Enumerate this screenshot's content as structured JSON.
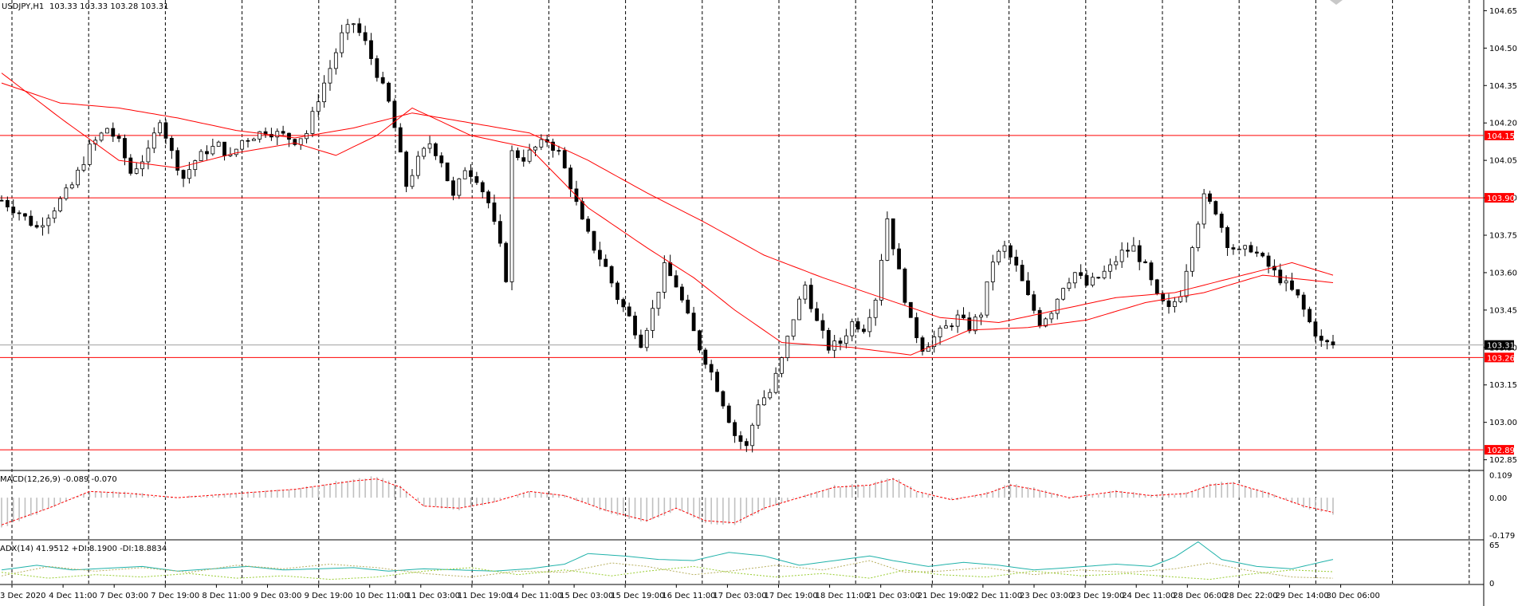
{
  "chart_data": {
    "type": "candlestick",
    "symbol_label": "USDJPY,H1",
    "ohlc_label": "103.33 103.33 103.28 103.31",
    "price_axis": {
      "ylim": [
        102.82,
        104.68
      ],
      "ticks": [
        "104.65",
        "104.50",
        "104.35",
        "104.20",
        "104.05",
        "103.90",
        "103.75",
        "103.60",
        "103.45",
        "103.30",
        "103.15",
        "103.00",
        "102.85"
      ]
    },
    "x_ticks": [
      "3 Dec 2020",
      "4 Dec 11:00",
      "7 Dec 03:00",
      "7 Dec 19:00",
      "8 Dec 11:00",
      "9 Dec 03:00",
      "9 Dec 19:00",
      "10 Dec 11:00",
      "11 Dec 03:00",
      "11 Dec 19:00",
      "14 Dec 11:00",
      "15 Dec 03:00",
      "15 Dec 19:00",
      "16 Dec 11:00",
      "17 Dec 03:00",
      "17 Dec 19:00",
      "18 Dec 11:00",
      "21 Dec 03:00",
      "21 Dec 19:00",
      "22 Dec 11:00",
      "23 Dec 03:00",
      "23 Dec 19:00",
      "24 Dec 11:00",
      "28 Dec 06:00",
      "28 Dec 22:00",
      "29 Dec 14:00",
      "30 Dec 06:00"
    ],
    "horizontal_levels": [
      {
        "value": 104.15,
        "label": "104.15"
      },
      {
        "value": 103.9,
        "label": "103.90"
      },
      {
        "value": 103.26,
        "label": "103.26"
      },
      {
        "value": 102.89,
        "label": "102.89"
      }
    ],
    "bid_level": {
      "value": 103.31,
      "label": "103.31"
    },
    "close_path": [
      [
        0,
        103.89
      ],
      [
        3,
        103.84
      ],
      [
        6,
        103.78
      ],
      [
        9,
        103.86
      ],
      [
        12,
        103.95
      ],
      [
        15,
        104.1
      ],
      [
        18,
        104.18
      ],
      [
        20,
        104.12
      ],
      [
        22,
        104.0
      ],
      [
        25,
        104.08
      ],
      [
        27,
        104.22
      ],
      [
        29,
        104.08
      ],
      [
        31,
        103.98
      ],
      [
        33,
        104.05
      ],
      [
        35,
        104.09
      ],
      [
        37,
        104.11
      ],
      [
        39,
        104.06
      ],
      [
        41,
        104.13
      ],
      [
        43,
        104.15
      ],
      [
        45,
        104.17
      ],
      [
        48,
        104.15
      ],
      [
        50,
        104.13
      ],
      [
        52,
        104.16
      ],
      [
        54,
        104.3
      ],
      [
        56,
        104.42
      ],
      [
        58,
        104.55
      ],
      [
        60,
        104.6
      ],
      [
        62,
        104.52
      ],
      [
        64,
        104.4
      ],
      [
        66,
        104.28
      ],
      [
        67,
        104.18
      ],
      [
        69,
        103.95
      ],
      [
        71,
        104.05
      ],
      [
        73,
        104.12
      ],
      [
        75,
        104.05
      ],
      [
        77,
        103.9
      ],
      [
        79,
        104.02
      ],
      [
        81,
        103.98
      ],
      [
        83,
        103.88
      ],
      [
        85,
        103.7
      ],
      [
        86,
        103.58
      ],
      [
        87,
        104.08
      ],
      [
        89,
        104.06
      ],
      [
        91,
        104.1
      ],
      [
        93,
        104.13
      ],
      [
        95,
        104.08
      ],
      [
        97,
        103.95
      ],
      [
        99,
        103.8
      ],
      [
        101,
        103.7
      ],
      [
        103,
        103.62
      ],
      [
        105,
        103.5
      ],
      [
        107,
        103.42
      ],
      [
        109,
        103.32
      ],
      [
        111,
        103.45
      ],
      [
        113,
        103.62
      ],
      [
        115,
        103.55
      ],
      [
        117,
        103.42
      ],
      [
        119,
        103.3
      ],
      [
        121,
        103.2
      ],
      [
        123,
        103.08
      ],
      [
        125,
        102.95
      ],
      [
        127,
        102.9
      ],
      [
        129,
        103.08
      ],
      [
        131,
        103.12
      ],
      [
        133,
        103.25
      ],
      [
        135,
        103.42
      ],
      [
        137,
        103.55
      ],
      [
        139,
        103.4
      ],
      [
        141,
        103.3
      ],
      [
        143,
        103.32
      ],
      [
        145,
        103.4
      ],
      [
        147,
        103.38
      ],
      [
        149,
        103.5
      ],
      [
        151,
        103.82
      ],
      [
        153,
        103.6
      ],
      [
        155,
        103.4
      ],
      [
        157,
        103.3
      ],
      [
        159,
        103.34
      ],
      [
        161,
        103.38
      ],
      [
        163,
        103.42
      ],
      [
        165,
        103.38
      ],
      [
        167,
        103.44
      ],
      [
        169,
        103.65
      ],
      [
        171,
        103.7
      ],
      [
        173,
        103.62
      ],
      [
        175,
        103.5
      ],
      [
        177,
        103.4
      ],
      [
        179,
        103.45
      ],
      [
        181,
        103.55
      ],
      [
        183,
        103.6
      ],
      [
        185,
        103.55
      ],
      [
        187,
        103.58
      ],
      [
        189,
        103.62
      ],
      [
        191,
        103.68
      ],
      [
        193,
        103.7
      ],
      [
        195,
        103.62
      ],
      [
        197,
        103.5
      ],
      [
        199,
        103.45
      ],
      [
        201,
        103.52
      ],
      [
        203,
        103.72
      ],
      [
        205,
        103.9
      ],
      [
        207,
        103.85
      ],
      [
        209,
        103.72
      ],
      [
        211,
        103.68
      ],
      [
        213,
        103.7
      ],
      [
        215,
        103.65
      ],
      [
        217,
        103.6
      ],
      [
        219,
        103.55
      ],
      [
        221,
        103.5
      ],
      [
        223,
        103.4
      ],
      [
        225,
        103.32
      ],
      [
        227,
        103.31
      ]
    ],
    "moving_averages": [
      {
        "color": "#ff0000",
        "values": [
          [
            0,
            104.36
          ],
          [
            10,
            104.28
          ],
          [
            20,
            104.26
          ],
          [
            30,
            104.22
          ],
          [
            40,
            104.17
          ],
          [
            50,
            104.14
          ],
          [
            60,
            104.18
          ],
          [
            70,
            104.24
          ],
          [
            80,
            104.2
          ],
          [
            90,
            104.16
          ],
          [
            100,
            104.05
          ],
          [
            110,
            103.92
          ],
          [
            120,
            103.8
          ],
          [
            130,
            103.67
          ],
          [
            140,
            103.58
          ],
          [
            150,
            103.5
          ],
          [
            160,
            103.42
          ],
          [
            170,
            103.4
          ],
          [
            180,
            103.45
          ],
          [
            190,
            103.5
          ],
          [
            200,
            103.52
          ],
          [
            210,
            103.58
          ],
          [
            220,
            103.64
          ],
          [
            227,
            103.59
          ]
        ]
      },
      {
        "color": "#ff0000",
        "values": [
          [
            0,
            104.4
          ],
          [
            10,
            104.22
          ],
          [
            20,
            104.05
          ],
          [
            30,
            104.02
          ],
          [
            40,
            104.08
          ],
          [
            50,
            104.12
          ],
          [
            57,
            104.07
          ],
          [
            64,
            104.15
          ],
          [
            70,
            104.26
          ],
          [
            80,
            104.15
          ],
          [
            90,
            104.1
          ],
          [
            100,
            103.86
          ],
          [
            110,
            103.7
          ],
          [
            118,
            103.58
          ],
          [
            125,
            103.45
          ],
          [
            133,
            103.32
          ],
          [
            145,
            103.3
          ],
          [
            155,
            103.27
          ],
          [
            165,
            103.37
          ],
          [
            175,
            103.38
          ],
          [
            185,
            103.41
          ],
          [
            195,
            103.48
          ],
          [
            205,
            103.52
          ],
          [
            215,
            103.59
          ],
          [
            227,
            103.56
          ]
        ]
      }
    ]
  },
  "macd_panel": {
    "label": "MACD(12,26,9) -0.089 -0.070",
    "ticks": [
      "0.109",
      "0.00",
      "-0.179"
    ],
    "ylim": [
      -0.19,
      0.115
    ],
    "values": [
      [
        0,
        -0.13
      ],
      [
        8,
        -0.05
      ],
      [
        15,
        0.03
      ],
      [
        22,
        0.02
      ],
      [
        30,
        0.0
      ],
      [
        40,
        0.02
      ],
      [
        50,
        0.04
      ],
      [
        60,
        0.08
      ],
      [
        64,
        0.09
      ],
      [
        68,
        0.05
      ],
      [
        72,
        -0.04
      ],
      [
        78,
        -0.05
      ],
      [
        84,
        -0.02
      ],
      [
        90,
        0.03
      ],
      [
        96,
        0.01
      ],
      [
        103,
        -0.06
      ],
      [
        110,
        -0.11
      ],
      [
        115,
        -0.05
      ],
      [
        120,
        -0.11
      ],
      [
        125,
        -0.12
      ],
      [
        130,
        -0.05
      ],
      [
        136,
        0.0
      ],
      [
        142,
        0.05
      ],
      [
        148,
        0.06
      ],
      [
        152,
        0.09
      ],
      [
        156,
        0.03
      ],
      [
        162,
        -0.01
      ],
      [
        168,
        0.02
      ],
      [
        172,
        0.06
      ],
      [
        176,
        0.04
      ],
      [
        182,
        0.0
      ],
      [
        190,
        0.03
      ],
      [
        196,
        0.01
      ],
      [
        202,
        0.02
      ],
      [
        206,
        0.06
      ],
      [
        210,
        0.07
      ],
      [
        216,
        0.02
      ],
      [
        222,
        -0.04
      ],
      [
        227,
        -0.07
      ]
    ]
  },
  "adx_panel": {
    "label": "ADX(14) 41.9512 +DI:8.1900 -DI:18.8834",
    "ticks": [
      "65",
      "0"
    ],
    "ylim": [
      0,
      68
    ],
    "adx": [
      [
        0,
        22
      ],
      [
        6,
        30
      ],
      [
        12,
        22
      ],
      [
        18,
        25
      ],
      [
        24,
        28
      ],
      [
        30,
        20
      ],
      [
        36,
        24
      ],
      [
        42,
        28
      ],
      [
        48,
        22
      ],
      [
        54,
        24
      ],
      [
        60,
        26
      ],
      [
        66,
        20
      ],
      [
        72,
        24
      ],
      [
        78,
        22
      ],
      [
        84,
        20
      ],
      [
        90,
        24
      ],
      [
        96,
        32
      ],
      [
        100,
        50
      ],
      [
        106,
        46
      ],
      [
        112,
        40
      ],
      [
        118,
        38
      ],
      [
        124,
        52
      ],
      [
        130,
        46
      ],
      [
        136,
        30
      ],
      [
        142,
        38
      ],
      [
        148,
        46
      ],
      [
        152,
        38
      ],
      [
        158,
        28
      ],
      [
        164,
        35
      ],
      [
        170,
        30
      ],
      [
        176,
        22
      ],
      [
        182,
        26
      ],
      [
        190,
        32
      ],
      [
        196,
        28
      ],
      [
        200,
        44
      ],
      [
        204,
        70
      ],
      [
        208,
        40
      ],
      [
        214,
        28
      ],
      [
        220,
        24
      ],
      [
        227,
        40
      ]
    ],
    "plus_di": [
      [
        0,
        12
      ],
      [
        8,
        28
      ],
      [
        16,
        20
      ],
      [
        24,
        26
      ],
      [
        32,
        18
      ],
      [
        40,
        30
      ],
      [
        48,
        24
      ],
      [
        56,
        32
      ],
      [
        64,
        26
      ],
      [
        72,
        16
      ],
      [
        80,
        10
      ],
      [
        88,
        20
      ],
      [
        96,
        18
      ],
      [
        104,
        34
      ],
      [
        110,
        28
      ],
      [
        118,
        14
      ],
      [
        124,
        20
      ],
      [
        132,
        30
      ],
      [
        140,
        22
      ],
      [
        148,
        38
      ],
      [
        154,
        18
      ],
      [
        160,
        20
      ],
      [
        168,
        26
      ],
      [
        176,
        14
      ],
      [
        184,
        22
      ],
      [
        192,
        18
      ],
      [
        200,
        24
      ],
      [
        206,
        34
      ],
      [
        212,
        22
      ],
      [
        220,
        10
      ],
      [
        227,
        8
      ]
    ],
    "minus_di": [
      [
        0,
        18
      ],
      [
        8,
        8
      ],
      [
        16,
        14
      ],
      [
        24,
        10
      ],
      [
        32,
        16
      ],
      [
        40,
        8
      ],
      [
        48,
        12
      ],
      [
        56,
        6
      ],
      [
        64,
        10
      ],
      [
        72,
        20
      ],
      [
        80,
        26
      ],
      [
        88,
        14
      ],
      [
        96,
        22
      ],
      [
        104,
        12
      ],
      [
        110,
        20
      ],
      [
        118,
        28
      ],
      [
        124,
        18
      ],
      [
        132,
        10
      ],
      [
        140,
        16
      ],
      [
        148,
        8
      ],
      [
        154,
        22
      ],
      [
        160,
        14
      ],
      [
        168,
        10
      ],
      [
        176,
        20
      ],
      [
        184,
        12
      ],
      [
        192,
        16
      ],
      [
        200,
        10
      ],
      [
        206,
        6
      ],
      [
        212,
        14
      ],
      [
        220,
        22
      ],
      [
        227,
        19
      ]
    ]
  },
  "colors": {
    "levels": "#ff0000",
    "ma": "#ff0000",
    "macd_signal": "#ff0000",
    "macd_hist": "#c0c0c0",
    "adx": "#20b2aa",
    "plus_di": "#b8b060",
    "minus_di": "#9acd32",
    "grid": "#000000",
    "bid_line": "#a0a0a0"
  }
}
